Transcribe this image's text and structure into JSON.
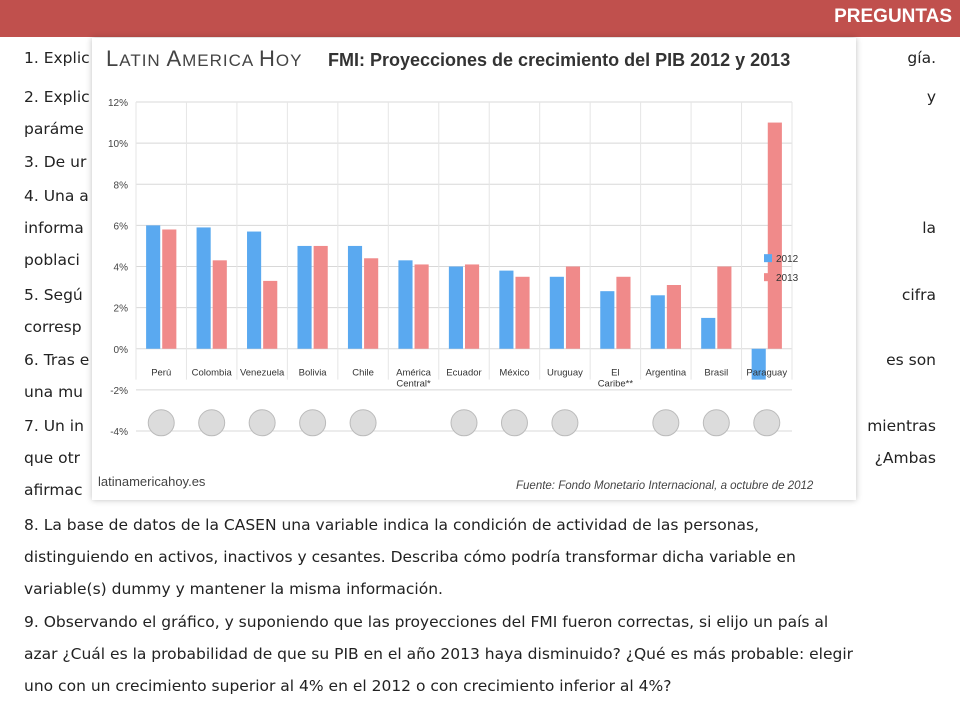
{
  "header": {
    "title": "PREGUNTAS"
  },
  "questions": {
    "q1": "1. Explic",
    "q1_end": "gía.",
    "q2": "2. Explic",
    "q2_end": "y",
    "q2_l2": "paráme",
    "q3": "3. De ur",
    "q4": "4. Una a",
    "q4_l2": "informa",
    "q4_l2_end": "la",
    "q4_l3": "poblaci",
    "q5": "5. Segú",
    "q5_end": "cifra",
    "q5_l2": "corresp",
    "q6": "6. Tras e",
    "q6_end": "es son",
    "q6_l2": "una mu",
    "q7": "7. Un in",
    "q7_end": "mientras",
    "q7_l2": "que otr",
    "q7_l2_end": "¿Ambas",
    "q7_l3": "afirmac",
    "q8_l1": "8. La base de datos de la CASEN  una variable indica la condición de actividad de las personas,",
    "q8_l2": "distinguiendo en activos, inactivos y cesantes. Describa cómo podría transformar dicha variable en",
    "q8_l3": "variable(s) dummy y mantener la misma información.",
    "q9_l1": "9. Observando el gráfico, y suponiendo que las proyecciones del FMI fueron correctas, si elijo un país al",
    "q9_l2": "azar ¿Cuál es la probabilidad de que su PIB en el año 2013 haya disminuido? ¿Qué es más probable: elegir",
    "q9_l3": "uno con un crecimiento superior al 4% en el 2012 o con crecimiento inferior al 4%?"
  },
  "chart_brand": {
    "part1": "L",
    "part2": "ATIN ",
    "part3": "A",
    "part4": "MERICA ",
    "part5": "H",
    "part6": "OY"
  },
  "chart_site": "latinamericahoy.es",
  "chart_source": "Fuente: Fondo Monetario Internacional, a octubre de 2012",
  "colors": {
    "s2012": "#5aa9f0",
    "s2013": "#f08a8a",
    "header": "#c0504d"
  },
  "chart_data": {
    "type": "bar",
    "title": "FMI: Proyecciones de crecimiento del PIB 2012 y 2013",
    "categories": [
      "Perú",
      "Colombia",
      "Venezuela",
      "Bolivia",
      "Chile",
      "América Central*",
      "Ecuador",
      "México",
      "Uruguay",
      "El Caribe**",
      "Argentina",
      "Brasil",
      "Paraguay"
    ],
    "series": [
      {
        "name": "2012",
        "values": [
          6.0,
          5.9,
          5.7,
          5.0,
          5.0,
          4.3,
          4.0,
          3.8,
          3.5,
          2.8,
          2.6,
          1.5,
          -1.5
        ]
      },
      {
        "name": "2013",
        "values": [
          5.8,
          4.3,
          3.3,
          5.0,
          4.4,
          4.1,
          4.1,
          3.5,
          4.0,
          3.5,
          3.1,
          4.0,
          11.0
        ]
      }
    ],
    "yticks": [
      "12%",
      "10%",
      "8%",
      "6%",
      "4%",
      "2%",
      "0%",
      "-2%",
      "-4%"
    ],
    "ylim": [
      -4,
      12
    ],
    "grid": true,
    "legend": "right"
  }
}
